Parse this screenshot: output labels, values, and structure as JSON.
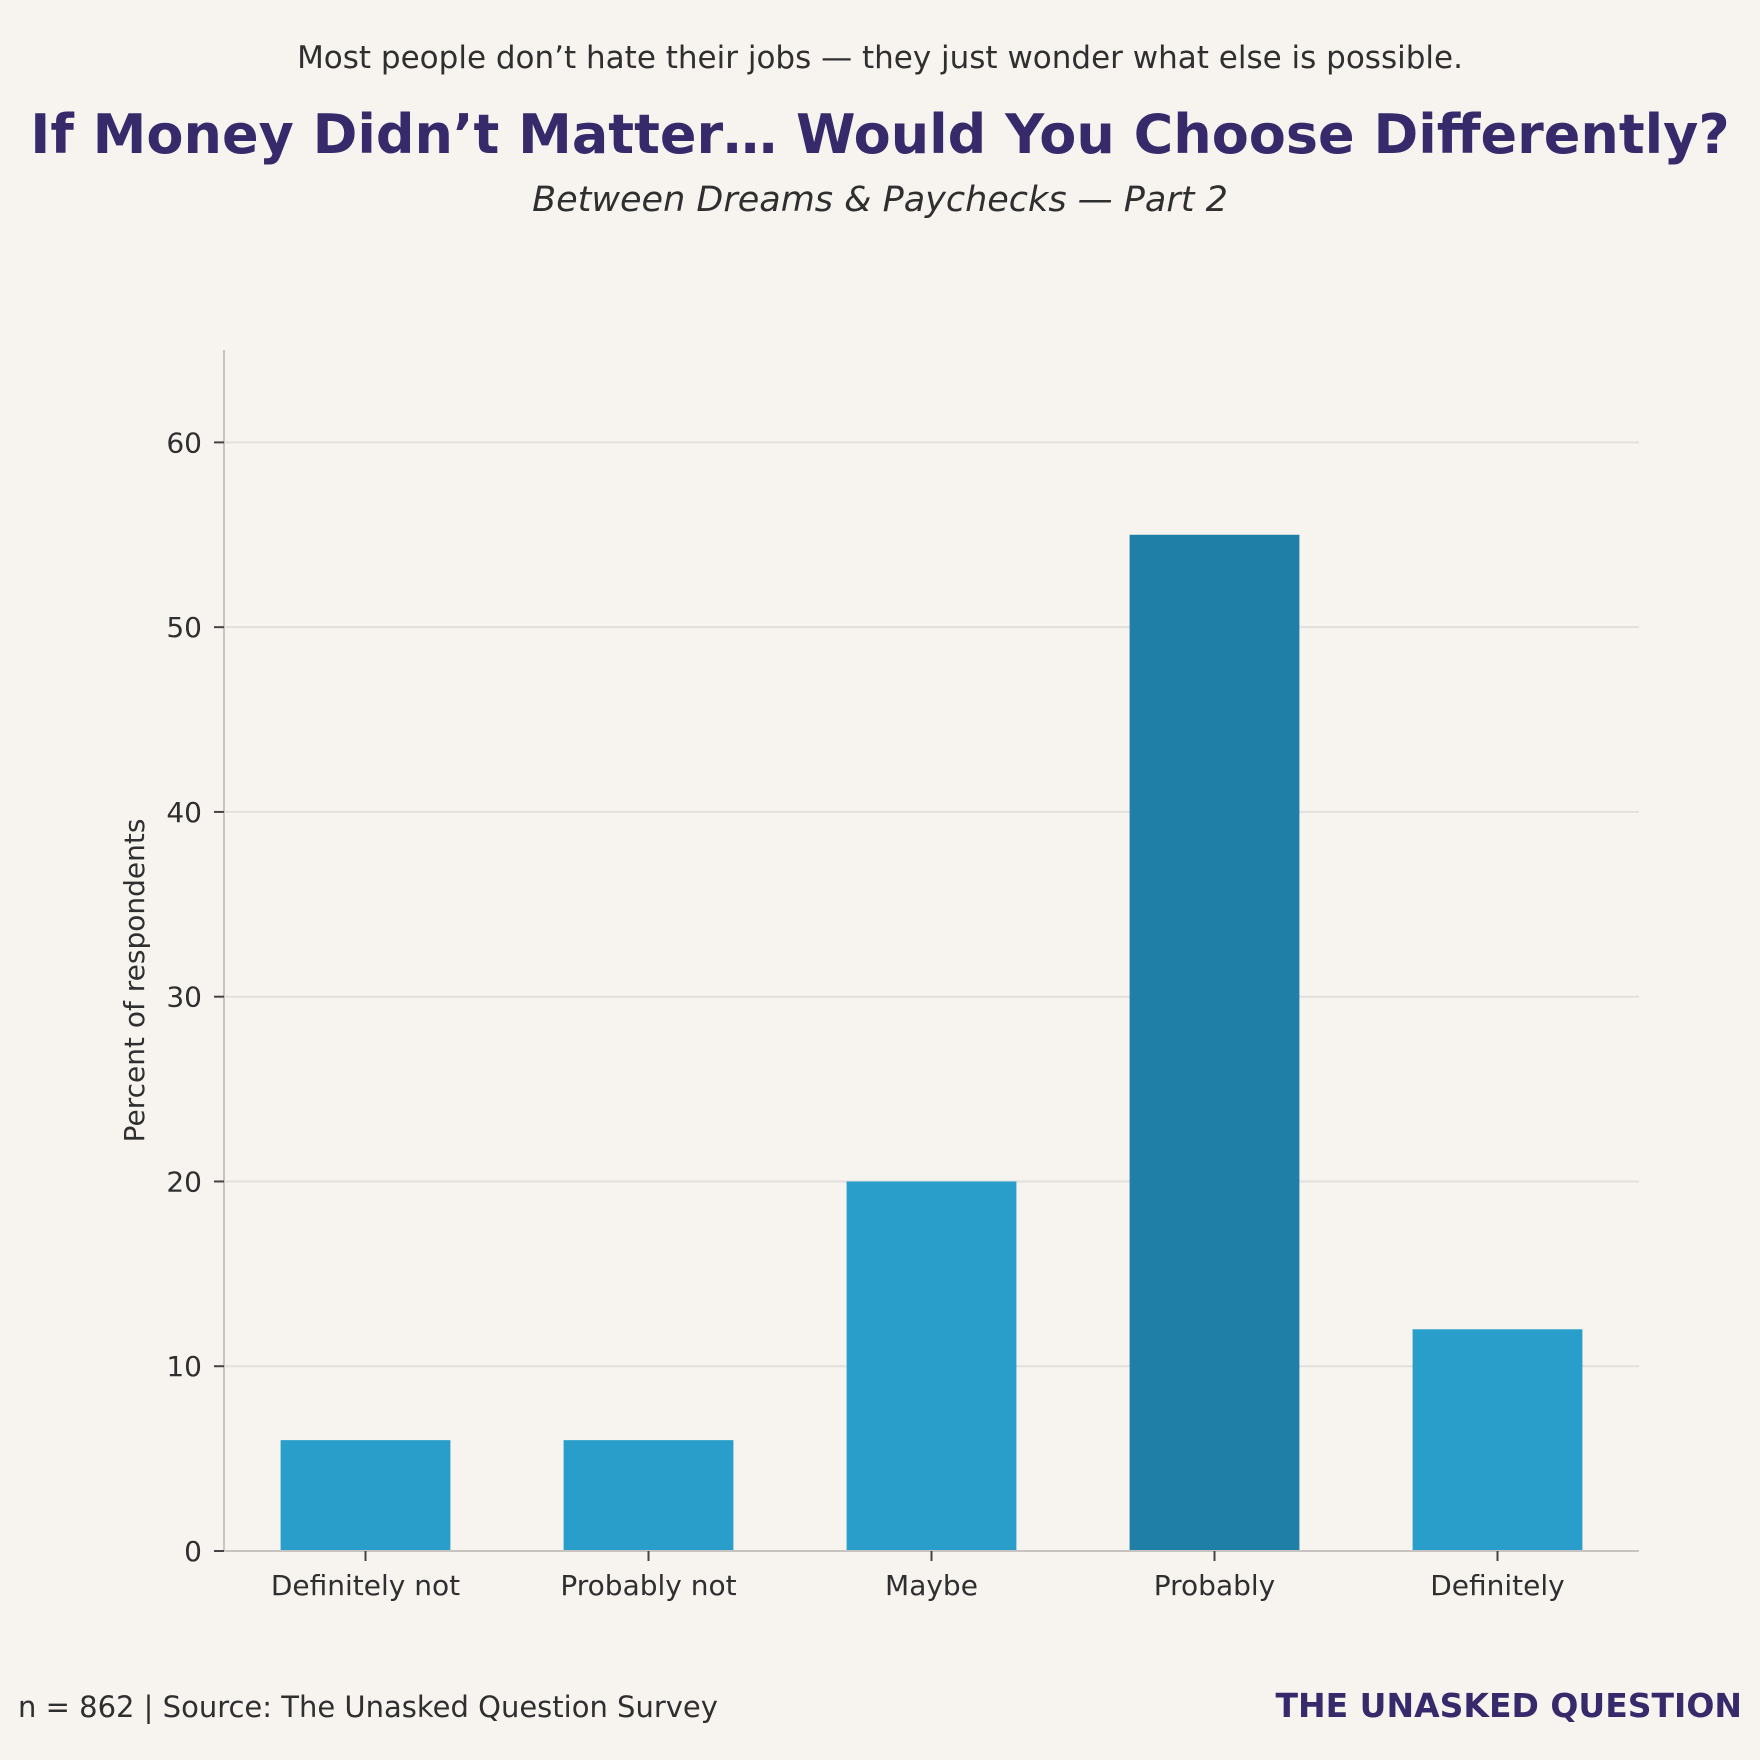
{
  "header": {
    "kicker": "Most people don’t hate their jobs — they just wonder what else is possible.",
    "title": "If Money Didn’t Matter… Would You Choose Differently?",
    "subtitle": "Between Dreams & Paychecks — Part 2"
  },
  "footer": {
    "source": "n = 862 | Source: The Unasked Question Survey",
    "brand": "THE UNASKED QUESTION"
  },
  "colors": {
    "background": "#f7f4f0",
    "bar": "#2a9ecb",
    "bar_highlight": "#1f7fa6",
    "title": "#372a6b",
    "grid": "#e2dfdc",
    "axis": "#c6c3c0",
    "text": "#2f2f2f"
  },
  "chart_data": {
    "type": "bar",
    "categories": [
      "Definitely not",
      "Probably not",
      "Maybe",
      "Probably",
      "Definitely"
    ],
    "values": [
      6,
      6,
      20,
      55,
      12
    ],
    "highlight_category": "Probably",
    "xlabel": "",
    "ylabel": "Percent of respondents",
    "ylim": [
      0,
      65
    ],
    "yticks": [
      0,
      10,
      20,
      30,
      40,
      50,
      60
    ],
    "grid": "horizontal",
    "legend": "none"
  }
}
